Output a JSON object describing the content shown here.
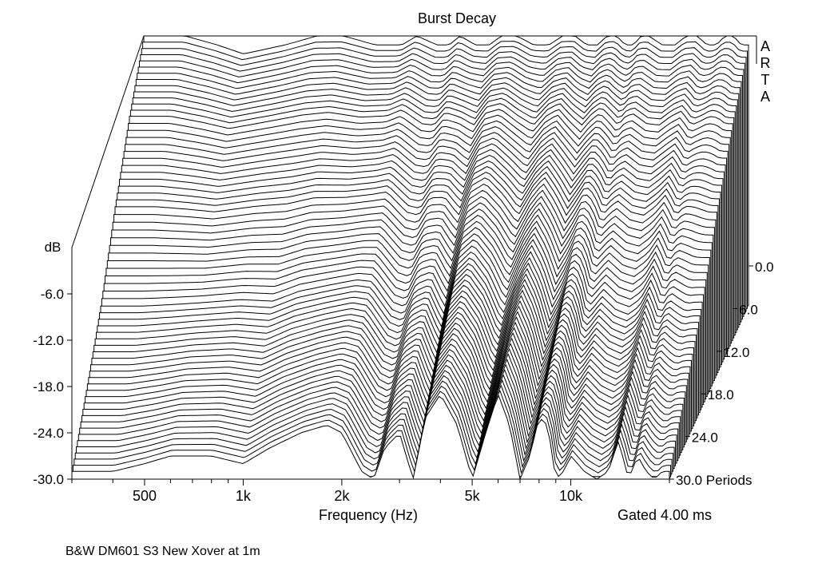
{
  "chart_data": {
    "type": "waterfall",
    "title": "Burst Decay",
    "watermark": "ARTA",
    "xlabel": "Frequency (Hz)",
    "zlabel": "dB",
    "x_scale": "log",
    "xlim": [
      300,
      20000
    ],
    "x_ticks": [
      {
        "value": 500,
        "label": "500"
      },
      {
        "value": 1000,
        "label": "1k"
      },
      {
        "value": 2000,
        "label": "2k"
      },
      {
        "value": 5000,
        "label": "5k"
      },
      {
        "value": 10000,
        "label": "10k"
      }
    ],
    "x_minor_ticks": [
      300,
      400,
      600,
      700,
      800,
      900,
      3000,
      4000,
      6000,
      7000,
      8000,
      9000,
      20000
    ],
    "zlim": [
      -30,
      0
    ],
    "z_ticks": [
      {
        "value": -6,
        "label": "-6.0"
      },
      {
        "value": -12,
        "label": "-12.0"
      },
      {
        "value": -18,
        "label": "-18.0"
      },
      {
        "value": -24,
        "label": "-24.0"
      },
      {
        "value": -30,
        "label": "-30.0"
      }
    ],
    "period_range": [
      0,
      30
    ],
    "period_ticks": [
      {
        "value": 0,
        "label": "0.0"
      },
      {
        "value": 6,
        "label": "6.0"
      },
      {
        "value": 12,
        "label": "12.0"
      },
      {
        "value": 18,
        "label": "18.0"
      },
      {
        "value": 24,
        "label": "24.0"
      },
      {
        "value": 30,
        "label": "30.0 Periods"
      }
    ],
    "gating_note": "Gated 4.00 ms",
    "caption": "B&W DM601 S3 New Xover at 1m",
    "grid": false,
    "profile_frequencies": [
      300,
      400,
      500,
      600,
      800,
      1000,
      1200,
      1500,
      1800,
      2000,
      2300,
      2500,
      2700,
      3000,
      3300,
      3600,
      4000,
      4500,
      5000,
      5500,
      6000,
      6500,
      7000,
      7500,
      8000,
      8500,
      9000,
      9500,
      10000,
      11000,
      12000,
      13000,
      14000,
      15000,
      16000,
      17000,
      18000,
      19000,
      20000
    ],
    "profile_level_first_db": [
      0,
      0,
      -1,
      -2,
      -1,
      0,
      0,
      -1,
      -1,
      0,
      -1,
      -1,
      0,
      -1,
      -1,
      0,
      0,
      -1,
      -1,
      0,
      0,
      -1,
      -1,
      0,
      0,
      -1,
      -1,
      0,
      0,
      -1,
      -1,
      0,
      0,
      -1,
      -1,
      0,
      0,
      -1,
      -1
    ],
    "profile_level_last_db": [
      -29,
      -29,
      -28,
      -27,
      -27,
      -28,
      -26,
      -24,
      -23,
      -24,
      -29,
      -30,
      -26,
      -24,
      -30,
      -22,
      -19,
      -23,
      -30,
      -24,
      -19,
      -23,
      -30,
      -27,
      -22,
      -23,
      -30,
      -29,
      -27,
      -29,
      -30,
      -29,
      -25,
      -30,
      -27,
      -29,
      -30,
      -29,
      -29
    ],
    "decay_shape": [
      {
        "period": 0,
        "dip": 0
      },
      {
        "period": 6,
        "dip": 0.15
      },
      {
        "period": 12,
        "dip": 0.35
      },
      {
        "period": 18,
        "dip": 0.6
      },
      {
        "period": 24,
        "dip": 0.8
      },
      {
        "period": 30,
        "dip": 1.0
      }
    ]
  }
}
